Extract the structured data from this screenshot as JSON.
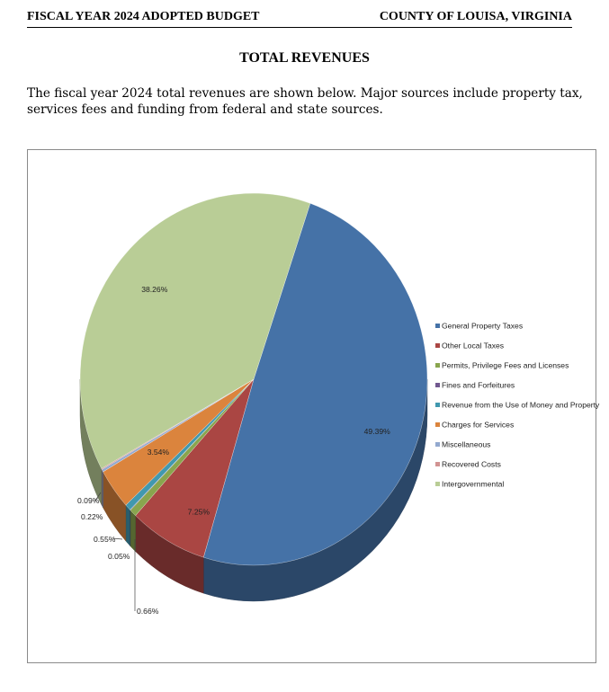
{
  "header": {
    "left": "FISCAL YEAR 2024 ADOPTED BUDGET",
    "right": "COUNTY OF LOUISA, VIRGINIA"
  },
  "page_title": "TOTAL REVENUES",
  "intro_text": "The fiscal year 2024 total revenues are shown below. Major sources include property tax, services fees and funding from federal and state sources.",
  "chart_data": {
    "type": "pie",
    "title": "",
    "legend_position": "right",
    "three_d": true,
    "series": [
      {
        "name": "General Property Taxes",
        "value": 49.39,
        "label": "49.39%",
        "color": "#4572a7"
      },
      {
        "name": "Other Local Taxes",
        "value": 7.25,
        "label": "7.25%",
        "color": "#aa4643"
      },
      {
        "name": "Permits, Privilege Fees and Licenses",
        "value": 0.66,
        "label": "0.66%",
        "color": "#89a54e"
      },
      {
        "name": "Fines and Forfeitures",
        "value": 0.05,
        "label": "0.05%",
        "color": "#71588f"
      },
      {
        "name": "Revenue from the Use of Money and Property",
        "value": 0.55,
        "label": "0.55%",
        "color": "#4198af"
      },
      {
        "name": "Charges for Services",
        "value": 3.54,
        "label": "3.54%",
        "color": "#db843d"
      },
      {
        "name": "Miscellaneous",
        "value": 0.22,
        "label": "0.22%",
        "color": "#93a9cf"
      },
      {
        "name": "Recovered Costs",
        "value": 0.09,
        "label": "0.09%",
        "color": "#d19392"
      },
      {
        "name": "Intergovernmental",
        "value": 38.26,
        "label": "38.26%",
        "color": "#b9cd96"
      }
    ]
  }
}
